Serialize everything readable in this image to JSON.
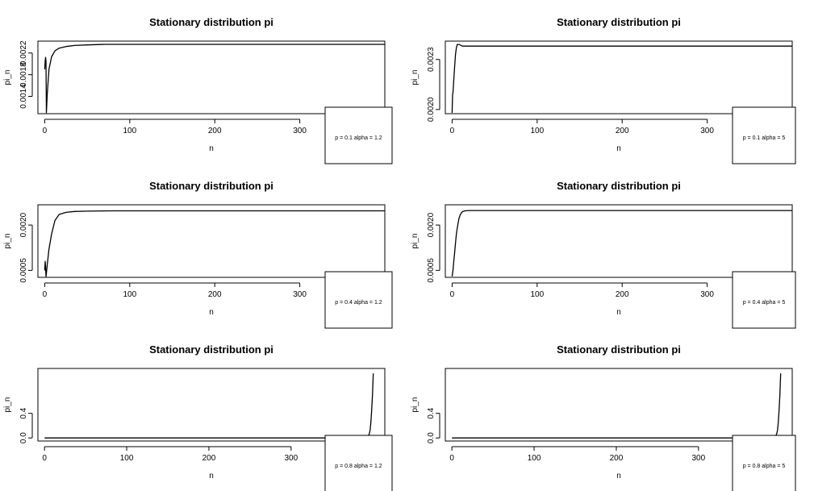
{
  "chart_data": [
    {
      "type": "line",
      "title": "Stationary distribution pi",
      "xlabel": "n",
      "ylabel": "pi_n",
      "xlim": [
        -8,
        400
      ],
      "ylim": [
        0.00108,
        0.00242
      ],
      "xticks": [
        0,
        100,
        200,
        300
      ],
      "xtick_labels": [
        "0",
        "100",
        "200",
        "300"
      ],
      "yticks": [
        0.0014,
        0.0018,
        0.0022
      ],
      "ytick_labels": [
        "0.0014",
        "0.0018",
        "0.0022"
      ],
      "legend": {
        "position": "bottom-right",
        "text": "p = 0.1  alpha = 1.2"
      },
      "series": [
        {
          "x": [
            0,
            0.5,
            1,
            1.5,
            2,
            3,
            5,
            8,
            12,
            17,
            25,
            35,
            50,
            70,
            100,
            200,
            300,
            400
          ],
          "y": [
            0.0019,
            0.00205,
            0.00212,
            0.00205,
            0.0011,
            0.00145,
            0.0019,
            0.00213,
            0.00224,
            0.00229,
            0.00232,
            0.00234,
            0.00235,
            0.00236,
            0.00236,
            0.00236,
            0.00236,
            0.00236
          ]
        }
      ]
    },
    {
      "type": "line",
      "title": "Stationary distribution pi",
      "xlabel": "n",
      "ylabel": "pi_n",
      "xlim": [
        -8,
        400
      ],
      "ylim": [
        0.001975,
        0.00241
      ],
      "xticks": [
        0,
        100,
        200,
        300
      ],
      "xtick_labels": [
        "0",
        "100",
        "200",
        "300"
      ],
      "yticks": [
        0.002,
        0.0023
      ],
      "ytick_labels": [
        "0.0020",
        "0.0023"
      ],
      "legend": {
        "position": "bottom-right",
        "text": "p = 0.1  alpha = 5"
      },
      "series": [
        {
          "x": [
            0,
            0.5,
            1,
            2,
            3,
            4,
            5,
            6,
            8,
            12,
            20,
            40,
            100,
            200,
            300,
            400
          ],
          "y": [
            0.00198,
            0.00209,
            0.0021,
            0.00218,
            0.00226,
            0.00233,
            0.00237,
            0.00239,
            0.00239,
            0.00238,
            0.00238,
            0.00238,
            0.00238,
            0.00238,
            0.00238,
            0.00238
          ]
        }
      ]
    },
    {
      "type": "line",
      "title": "Stationary distribution pi",
      "xlabel": "n",
      "ylabel": "pi_n",
      "xlim": [
        -8,
        400
      ],
      "ylim": [
        0.00027,
        0.00267
      ],
      "xticks": [
        0,
        100,
        200,
        300
      ],
      "xtick_labels": [
        "0",
        "100",
        "200",
        "300"
      ],
      "yticks": [
        0.0005,
        0.002
      ],
      "ytick_labels": [
        "0.0005",
        "0.0020"
      ],
      "legend": {
        "position": "bottom-right",
        "text": "p = 0.4  alpha = 1.2"
      },
      "series": [
        {
          "x": [
            0,
            0.5,
            1,
            1.5,
            2,
            3,
            5,
            8,
            12,
            17,
            25,
            35,
            50,
            80,
            100,
            200,
            300,
            400
          ],
          "y": [
            0.0005,
            0.0008,
            0.0006,
            0.0003,
            0.0004,
            0.0007,
            0.0012,
            0.0017,
            0.00215,
            0.00235,
            0.00242,
            0.00245,
            0.00246,
            0.00247,
            0.00247,
            0.00247,
            0.00247,
            0.00247
          ]
        }
      ]
    },
    {
      "type": "line",
      "title": "Stationary distribution pi",
      "xlabel": "n",
      "ylabel": "pi_n",
      "xlim": [
        -8,
        400
      ],
      "ylim": [
        0.00027,
        0.00267
      ],
      "xticks": [
        0,
        100,
        200,
        300
      ],
      "xtick_labels": [
        "0",
        "100",
        "200",
        "300"
      ],
      "yticks": [
        0.0005,
        0.002
      ],
      "ytick_labels": [
        "0.0005",
        "0.0020"
      ],
      "legend": {
        "position": "bottom-right",
        "text": "p = 0.4  alpha = 5"
      },
      "series": [
        {
          "x": [
            0,
            1,
            2,
            3,
            4,
            5,
            6,
            8,
            10,
            12,
            15,
            20,
            40,
            100,
            200,
            300,
            400
          ],
          "y": [
            0.0003,
            0.0005,
            0.0008,
            0.0011,
            0.0014,
            0.0017,
            0.0019,
            0.00222,
            0.00237,
            0.00244,
            0.00247,
            0.00248,
            0.00248,
            0.00248,
            0.00248,
            0.00248,
            0.00248
          ]
        }
      ]
    },
    {
      "type": "line",
      "title": "Stationary distribution pi",
      "xlabel": "n",
      "ylabel": "pi_n",
      "xlim": [
        -8,
        414
      ],
      "ylim": [
        -0.05,
        1.13
      ],
      "xticks": [
        0,
        100,
        200,
        300
      ],
      "xtick_labels": [
        "0",
        "100",
        "200",
        "300"
      ],
      "yticks": [
        0.0,
        0.4
      ],
      "ytick_labels": [
        "0.0",
        "0.4"
      ],
      "legend": {
        "position": "bottom-right",
        "text": "p = 0.8  alpha = 1.2"
      },
      "series": [
        {
          "x": [
            0,
            100,
            200,
            300,
            380,
            390,
            393,
            395,
            396,
            397,
            398,
            399,
            400
          ],
          "y": [
            0.0,
            0.0,
            0.0,
            0.0,
            0.0,
            0.005,
            0.02,
            0.06,
            0.12,
            0.25,
            0.45,
            0.7,
            1.05
          ]
        }
      ]
    },
    {
      "type": "line",
      "title": "Stationary distribution pi",
      "xlabel": "n",
      "ylabel": "pi_n",
      "xlim": [
        -8,
        414
      ],
      "ylim": [
        -0.05,
        1.13
      ],
      "xticks": [
        0,
        100,
        200,
        300
      ],
      "xtick_labels": [
        "0",
        "100",
        "200",
        "300"
      ],
      "yticks": [
        0.0,
        0.4
      ],
      "ytick_labels": [
        "0.0",
        "0.4"
      ],
      "legend": {
        "position": "bottom-right",
        "text": "p = 0.8  alpha = 5"
      },
      "series": [
        {
          "x": [
            0,
            100,
            200,
            300,
            380,
            390,
            393,
            395,
            396,
            397,
            398,
            399,
            400
          ],
          "y": [
            0.0,
            0.0,
            0.0,
            0.0,
            0.0,
            0.005,
            0.02,
            0.06,
            0.12,
            0.25,
            0.45,
            0.7,
            1.05
          ]
        }
      ]
    }
  ]
}
